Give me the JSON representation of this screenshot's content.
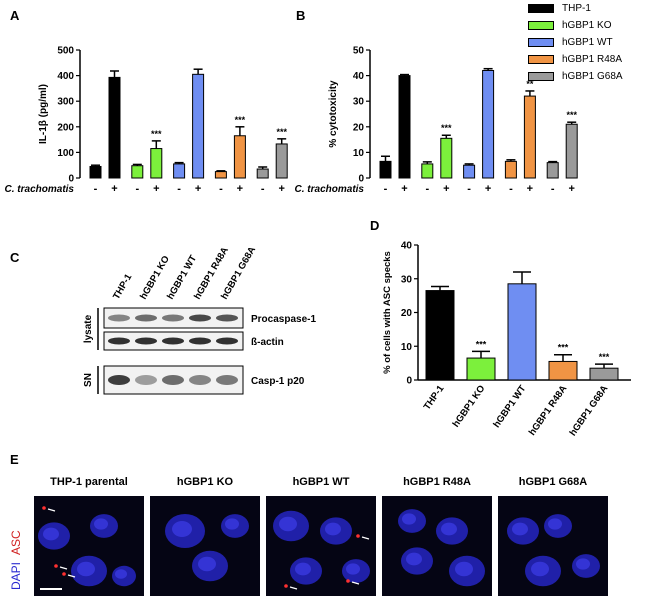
{
  "panel_labels": {
    "a": "A",
    "b": "B",
    "c": "C",
    "d": "D",
    "e": "E"
  },
  "legend": [
    {
      "name": "THP-1",
      "color": "#000000"
    },
    {
      "name": "hGBP1 KO",
      "color": "#7cf03c"
    },
    {
      "name": "hGBP1 WT",
      "color": "#6f8ef2"
    },
    {
      "name": "hGBP1 R48A",
      "color": "#f09444"
    },
    {
      "name": "hGBP1 G68A",
      "color": "#9a9a9a"
    }
  ],
  "chart_data": [
    {
      "id": "A",
      "type": "bar",
      "ylabel": "IL-1β (pg/ml)",
      "ylim": [
        0,
        500
      ],
      "yticks": [
        0,
        100,
        200,
        300,
        400,
        500
      ],
      "xlabel": "C. trachomatis",
      "x_signs": [
        "-",
        "+",
        "-",
        "+",
        "-",
        "+",
        "-",
        "+",
        "-",
        "+"
      ],
      "groups": [
        "THP-1",
        "hGBP1 KO",
        "hGBP1 WT",
        "hGBP1 R48A",
        "hGBP1 G68A"
      ],
      "values": [
        45,
        393,
        48,
        115,
        55,
        405,
        25,
        165,
        35,
        133
      ],
      "errors": [
        5,
        25,
        5,
        30,
        5,
        20,
        3,
        35,
        8,
        20
      ],
      "significance": [
        "",
        "",
        "",
        "***",
        "",
        "",
        "",
        "***",
        "",
        "***"
      ]
    },
    {
      "id": "B",
      "type": "bar",
      "ylabel": "% cytotoxicity",
      "ylim": [
        0,
        50
      ],
      "yticks": [
        0,
        10,
        20,
        30,
        40,
        50
      ],
      "xlabel": "C. trachomatis",
      "x_signs": [
        "-",
        "+",
        "-",
        "+",
        "-",
        "+",
        "-",
        "+",
        "-",
        "+"
      ],
      "groups": [
        "THP-1",
        "hGBP1 KO",
        "hGBP1 WT",
        "hGBP1 R48A",
        "hGBP1 G68A"
      ],
      "values": [
        6.5,
        40,
        5.5,
        15.5,
        5,
        42,
        6.5,
        32,
        6,
        21
      ],
      "errors": [
        2,
        0.4,
        0.8,
        1.2,
        0.5,
        0.7,
        0.6,
        2,
        0.4,
        0.8
      ],
      "significance": [
        "",
        "",
        "",
        "***",
        "",
        "",
        "",
        "**",
        "",
        "***"
      ]
    },
    {
      "id": "D",
      "type": "bar",
      "ylabel": "% of cells with ASC specks",
      "ylim": [
        0,
        40
      ],
      "yticks": [
        0,
        10,
        20,
        30,
        40
      ],
      "categories": [
        "THP-1",
        "hGBP1 KO",
        "hGBP1 WT",
        "hGBP1 R48A",
        "hGBP1 G68A"
      ],
      "values": [
        26.5,
        6.5,
        28.5,
        5.5,
        3.5
      ],
      "errors": [
        1.2,
        2,
        3.5,
        2,
        1.2
      ],
      "significance": [
        "",
        "***",
        "",
        "***",
        "***"
      ]
    }
  ],
  "blot": {
    "lanes": [
      "THP-1",
      "hGBP1 KO",
      "hGBP1 WT",
      "hGBP1 R48A",
      "hGBP1 G68A"
    ],
    "sections": [
      {
        "label": "lysate",
        "rows": [
          "Procaspase-1",
          "ß-actin"
        ]
      },
      {
        "label": "SN",
        "rows": [
          "Casp-1 p20"
        ]
      }
    ]
  },
  "micrographs": {
    "stain_labels": [
      {
        "text": "DAPI",
        "color": "#2a2ad0"
      },
      {
        "text": "ASC",
        "color": "#d02020"
      }
    ],
    "panels": [
      "THP-1 parental",
      "hGBP1 KO",
      "hGBP1 WT",
      "hGBP1 R48A",
      "hGBP1 G68A"
    ]
  }
}
